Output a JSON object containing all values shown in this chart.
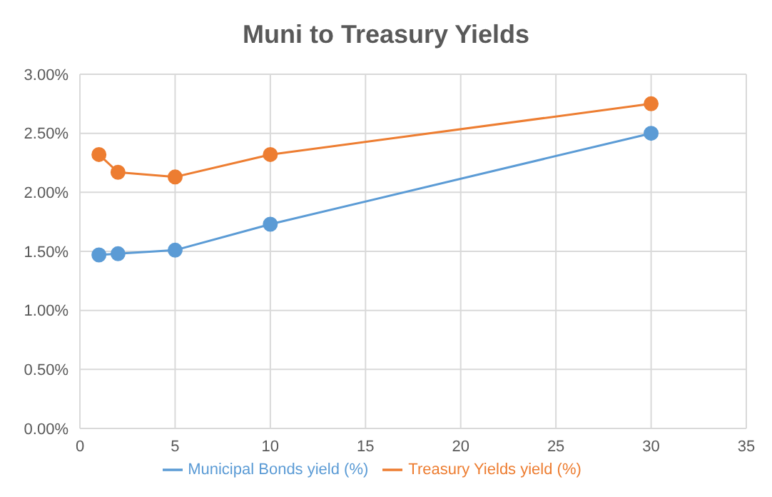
{
  "chart_data": {
    "type": "line",
    "title": "Muni to Treasury Yields",
    "x": [
      1,
      2,
      5,
      10,
      30
    ],
    "series": [
      {
        "name": "Municipal Bonds yield (%)",
        "color": "#5b9bd5",
        "values": [
          1.47,
          1.48,
          1.51,
          1.73,
          2.5
        ]
      },
      {
        "name": "Treasury Yields yield (%)",
        "color": "#ed7d31",
        "values": [
          2.32,
          2.17,
          2.13,
          2.32,
          2.75
        ]
      }
    ],
    "xlim": [
      0,
      35
    ],
    "xticks": [
      0,
      5,
      10,
      15,
      20,
      25,
      30,
      35
    ],
    "ylim": [
      0,
      3
    ],
    "yticks": [
      {
        "value": 0,
        "label": "0.00%"
      },
      {
        "value": 0.5,
        "label": "0.50%"
      },
      {
        "value": 1,
        "label": "1.00%"
      },
      {
        "value": 1.5,
        "label": "1.50%"
      },
      {
        "value": 2,
        "label": "2.00%"
      },
      {
        "value": 2.5,
        "label": "2.50%"
      },
      {
        "value": 3,
        "label": "3.00%"
      }
    ],
    "grid": true,
    "legend": "bottom",
    "marker": "circle",
    "line_style": "solid"
  }
}
